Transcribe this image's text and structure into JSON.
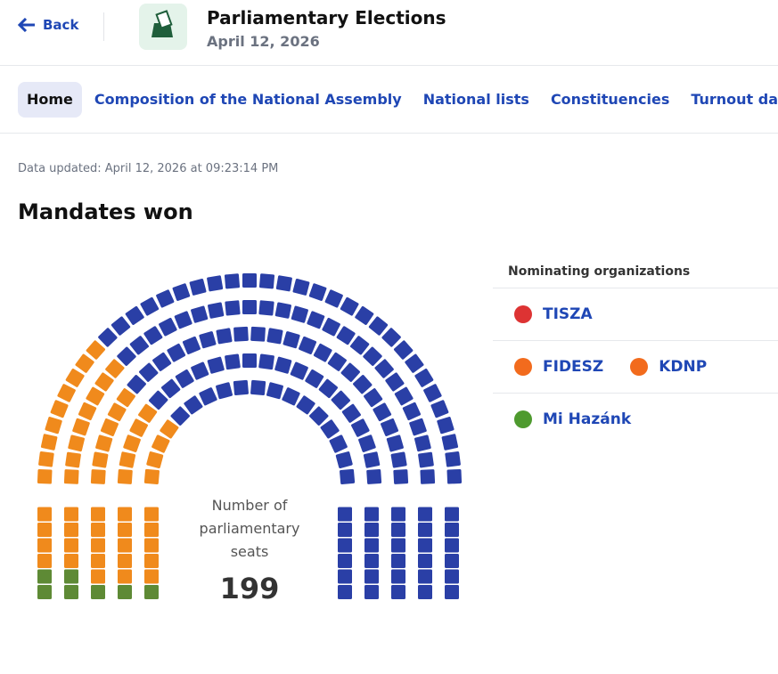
{
  "header": {
    "back": "Back",
    "title": "Parliamentary Elections",
    "date": "April 12, 2026"
  },
  "nav": {
    "items": [
      "Home",
      "Composition of the National Assembly",
      "National lists",
      "Constituencies",
      "Turnout data"
    ],
    "active": 0
  },
  "updated": "Data updated: April 12, 2026 at 09:23:14 PM",
  "chart_data": {
    "type": "parliament",
    "title": "Mandates won",
    "center_label": "Number of parliamentary seats",
    "total": 199,
    "legend_title": "Nominating organizations",
    "groups": [
      {
        "names": [
          "Mi Hazánk"
        ],
        "color": "#5e8a35",
        "logo_color": "#4e9a2e",
        "seats": 7
      },
      {
        "names": [
          "FIDESZ",
          "KDNP"
        ],
        "color": "#f08a1c",
        "logo_color": "#f26b1d",
        "seats": 55
      },
      {
        "names": [
          "TISZA"
        ],
        "color": "#2a3fa6",
        "logo_color": "#d33",
        "seats": 137
      }
    ],
    "legend_order": [
      2,
      1,
      0
    ]
  }
}
